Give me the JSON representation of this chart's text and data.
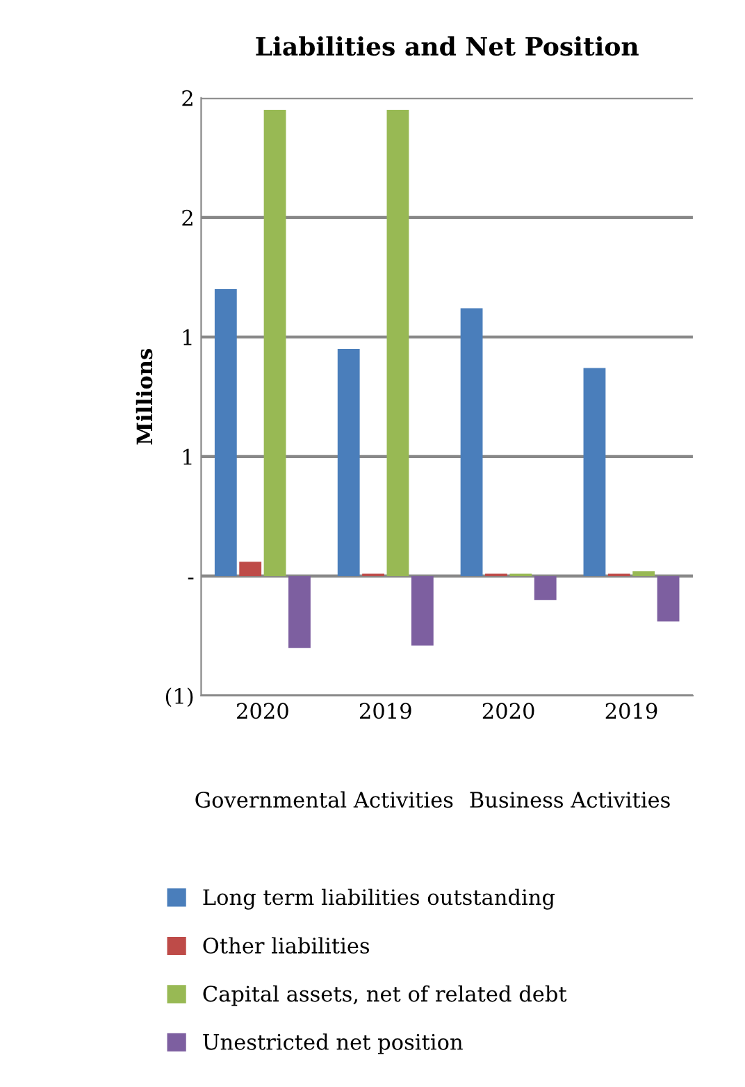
{
  "chart_data": {
    "type": "bar",
    "title": "Liabilities and Net Position",
    "ylabel": "Millions",
    "categories": [
      "2020",
      "2019",
      "2020",
      "2019"
    ],
    "annotations": [
      "Governmental Activities",
      "Business Activities"
    ],
    "series": [
      {
        "name": "Long term liabilities outstanding",
        "color": "#4a7ebb",
        "values": [
          1.2,
          0.95,
          1.12,
          0.87
        ]
      },
      {
        "name": "Other liabilities",
        "color": "#be4b48",
        "values": [
          0.06,
          0.01,
          0.01,
          0.01
        ]
      },
      {
        "name": "Capital assets, net of related debt",
        "color": "#98b954",
        "values": [
          1.95,
          1.95,
          0.01,
          0.02
        ]
      },
      {
        "name": "Unestricted net position",
        "color": "#7d5fa0",
        "values": [
          -0.3,
          -0.29,
          -0.1,
          -0.19
        ]
      }
    ],
    "ylim": [
      -0.5,
      2.0
    ],
    "yticks": [
      {
        "value": -0.5,
        "label": "(1)"
      },
      {
        "value": 0,
        "label": "-"
      },
      {
        "value": 0.5,
        "label": "1"
      },
      {
        "value": 1,
        "label": "1"
      },
      {
        "value": 1.5,
        "label": "2"
      },
      {
        "value": 2,
        "label": "2"
      }
    ],
    "grid": "y",
    "legend": "bottom"
  }
}
